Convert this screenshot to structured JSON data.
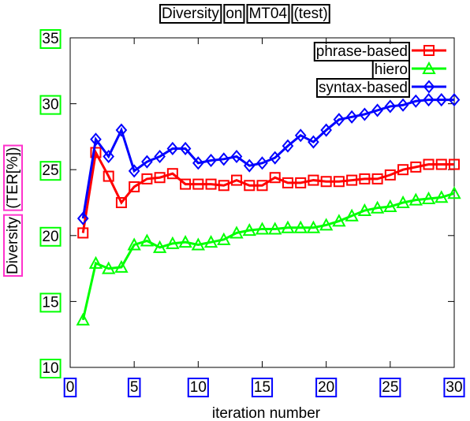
{
  "chart_data": {
    "type": "line",
    "title_words": [
      "Diversity",
      "on",
      "MT04",
      "(test)"
    ],
    "xlabel": "iteration number",
    "ylabel_words": [
      "Diversity",
      "(TER[%])"
    ],
    "xlim": [
      0,
      30
    ],
    "ylim": [
      10,
      35
    ],
    "xticks": [
      0,
      5,
      10,
      15,
      20,
      25,
      30
    ],
    "yticks": [
      10,
      15,
      20,
      25,
      30,
      35
    ],
    "grid": false,
    "legend_placement": "top-right",
    "x": [
      1,
      2,
      3,
      4,
      5,
      6,
      7,
      8,
      9,
      10,
      11,
      12,
      13,
      14,
      15,
      16,
      17,
      18,
      19,
      20,
      21,
      22,
      23,
      24,
      25,
      26,
      27,
      28,
      29,
      30
    ],
    "series": [
      {
        "name": "phrase-based",
        "color": "#ff0000",
        "marker": "square",
        "values": [
          20.2,
          26.3,
          24.5,
          22.5,
          23.7,
          24.3,
          24.4,
          24.7,
          23.9,
          23.9,
          23.9,
          23.8,
          24.2,
          23.8,
          23.8,
          24.4,
          24.0,
          24.0,
          24.2,
          24.1,
          24.1,
          24.2,
          24.3,
          24.3,
          24.6,
          25.0,
          25.2,
          25.4,
          25.4,
          25.4
        ]
      },
      {
        "name": "hiero",
        "color": "#00ff00",
        "marker": "triangle",
        "values": [
          13.6,
          17.9,
          17.5,
          17.6,
          19.3,
          19.6,
          19.1,
          19.4,
          19.5,
          19.3,
          19.5,
          19.7,
          20.2,
          20.4,
          20.5,
          20.5,
          20.6,
          20.6,
          20.6,
          20.8,
          21.1,
          21.5,
          21.9,
          22.1,
          22.2,
          22.5,
          22.7,
          22.8,
          22.9,
          23.2
        ]
      },
      {
        "name": "syntax-based",
        "color": "#0000ff",
        "marker": "diamond",
        "values": [
          21.3,
          27.3,
          26.0,
          28.0,
          24.9,
          25.6,
          26.0,
          26.6,
          26.6,
          25.5,
          25.7,
          25.8,
          26.0,
          25.3,
          25.5,
          25.9,
          26.8,
          27.6,
          27.1,
          28.0,
          28.8,
          29.0,
          29.2,
          29.5,
          29.8,
          29.9,
          30.2,
          30.3,
          30.3,
          30.3
        ]
      }
    ]
  }
}
